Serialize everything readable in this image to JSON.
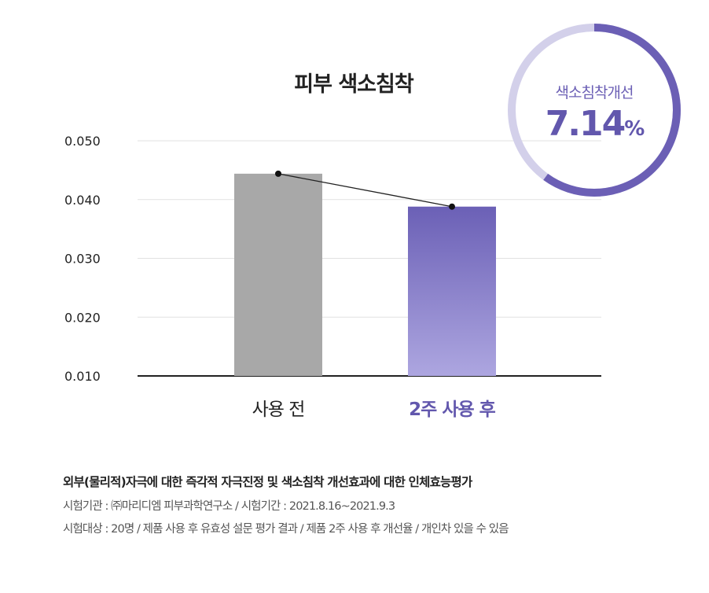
{
  "chart_data": {
    "type": "bar",
    "title": "피부 색소침착",
    "categories": [
      "사용 전",
      "2주 사용 후"
    ],
    "values": [
      0.0444,
      0.0388
    ],
    "yticks": [
      "0.050",
      "0.040",
      "0.030",
      "0.020",
      "0.010"
    ],
    "ytick_values": [
      0.05,
      0.04,
      0.03,
      0.02,
      0.01
    ],
    "ylim": [
      0.01,
      0.05
    ],
    "grid": true,
    "overlay_line": true,
    "colors": {
      "before": "#a8a8a8",
      "after_top": "#6b60b6",
      "after_bottom": "#ada6e0",
      "label_after": "#6257ad"
    }
  },
  "badge": {
    "label": "색소침착개선",
    "value": "7.14",
    "unit": "%",
    "ring_fill_fraction": 0.6,
    "ring_color": "#6b5fb5",
    "ring_track_color": "#d3d0ea"
  },
  "notes": {
    "title": "외부(물리적)자극에 대한 즉각적 자극진정 및 색소침착 개선효과에 대한 인체효능평가",
    "lines": [
      "시험기관 : ㈜마리디엠 피부과학연구소 / 시험기간 : 2021.8.16~2021.9.3",
      "시험대상 : 20명 / 제품 사용 후 유효성 설문 평가 결과 / 제품 2주 사용 후 개선율 / 개인차 있을 수 있음"
    ]
  }
}
